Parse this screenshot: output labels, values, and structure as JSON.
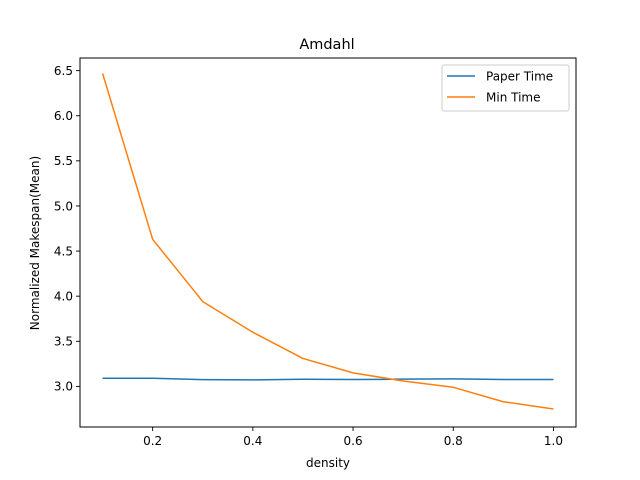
{
  "chart_data": {
    "type": "line",
    "title": "Amdahl",
    "xlabel": "density",
    "ylabel": "Normalized Makespan(Mean)",
    "xlim": [
      0.055,
      1.045
    ],
    "ylim": [
      2.55,
      6.64
    ],
    "xticks": [
      0.2,
      0.4,
      0.6,
      0.8,
      1.0
    ],
    "xtick_labels": [
      "0.2",
      "0.4",
      "0.6",
      "0.8",
      "1.0"
    ],
    "yticks": [
      3.0,
      3.5,
      4.0,
      4.5,
      5.0,
      5.5,
      6.0,
      6.5
    ],
    "ytick_labels": [
      "3.0",
      "3.5",
      "4.0",
      "4.5",
      "5.0",
      "5.5",
      "6.0",
      "6.5"
    ],
    "grid": false,
    "legend_position": "top-right",
    "x": [
      0.1,
      0.2,
      0.3,
      0.4,
      0.5,
      0.6,
      0.7,
      0.8,
      0.9,
      1.0
    ],
    "series": [
      {
        "name": "Paper Time",
        "color": "#1f77b4",
        "values": [
          3.09,
          3.09,
          3.075,
          3.072,
          3.079,
          3.076,
          3.08,
          3.083,
          3.076,
          3.076
        ]
      },
      {
        "name": "Min Time",
        "color": "#ff7f0e",
        "values": [
          6.47,
          4.63,
          3.94,
          3.6,
          3.31,
          3.15,
          3.06,
          2.99,
          2.83,
          2.75
        ]
      }
    ]
  }
}
